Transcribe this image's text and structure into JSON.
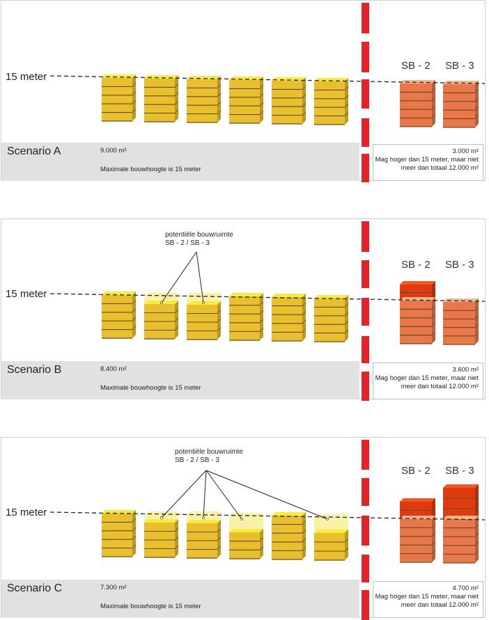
{
  "height_label": "15 meter",
  "annotation": {
    "line1": "potentiële bouwruimte",
    "line2": "SB - 2 / SB - 3"
  },
  "scenarios": [
    {
      "title": "Scenario A",
      "area": "9.000 m²",
      "max_height": "Maximale bouwhoogte is 15 meter",
      "sb2_label": "SB - 2",
      "sb3_label": "SB - 3",
      "right_area": "3.000 m²",
      "right_note": "Mag hoger dan 15 meter, maar niet meer dan totaal 12.000 m²"
    },
    {
      "title": "Scenario B",
      "area": "8.400 m²",
      "max_height": "Maximale bouwhoogte is 15 meter",
      "sb2_label": "SB - 2",
      "sb3_label": "SB - 3",
      "right_area": "3.600 m²",
      "right_note": "Mag hoger dan 15 meter, maar niet meer dan totaal 12.000 m²"
    },
    {
      "title": "Scenario C",
      "area": "7.300 m²",
      "max_height": "Maximale bouwhoogte is 15 meter",
      "sb2_label": "SB - 2",
      "sb3_label": "SB - 3",
      "right_area": "4.700 m²",
      "right_note": "Mag hoger dan 15 meter, maar niet meer dan totaal 12.000 m²"
    }
  ],
  "colors": {
    "yellow_front": "#e8bf2d",
    "yellow_top": "#f8ec3a",
    "ghost": "#f7f2a8",
    "orange_front": "#e8774a",
    "orange_top": "#f2b68a",
    "red_front": "#e03a10",
    "red_top": "#f05a20",
    "divider": "#e2232a"
  }
}
